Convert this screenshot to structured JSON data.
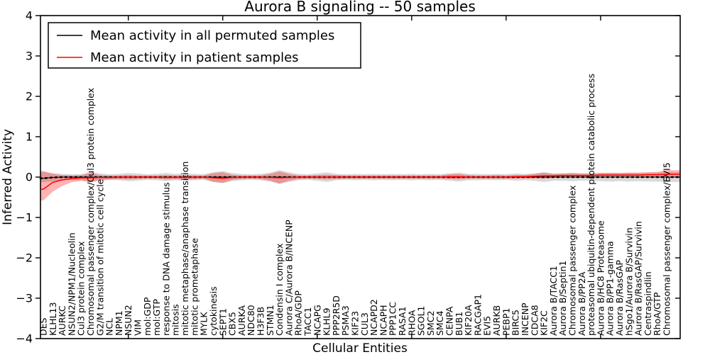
{
  "figure": {
    "title": "Aurora B signaling -- 50 samples",
    "xlabel": "Cellular Entities",
    "ylabel": "Inferred Activity"
  },
  "legend": {
    "items": [
      {
        "label": "Mean activity in all permuted samples",
        "color": "#000000"
      },
      {
        "label": "Mean activity in patient samples",
        "color": "#ff0000"
      }
    ]
  },
  "chart_data": {
    "type": "line",
    "title": "Aurora B signaling -- 50 samples",
    "xlabel": "Cellular Entities",
    "ylabel": "Inferred Activity",
    "ylim": [
      -4,
      4
    ],
    "yticks": [
      4,
      3,
      2,
      1,
      0,
      -1,
      -2,
      -3,
      -4
    ],
    "grid": false,
    "legend_position": "upper left",
    "x_major_tick_indices": [
      9,
      19,
      29,
      39,
      49,
      59
    ],
    "categories": [
      "DES",
      "KLHL13",
      "AURKC",
      "NSUN2/NPM1/Nucleolin",
      "Cul3 protein complex",
      "Chromosomal passenger complex/Cul3 protein complex",
      "G2/M transition of mitotic cell cycle",
      "NCL",
      "NPM1",
      "NSUN2",
      "VIM",
      "mol:GDP",
      "mol:GTP",
      "response to DNA damage stimulus",
      "mitosis",
      "mitotic metaphase/anaphase transition",
      "mitotic prometaphase",
      "MYLK",
      "cytokinesis",
      "SEPT1",
      "CBX5",
      "AURKA",
      "NDC80",
      "H3F3B",
      "STMN1",
      "Condensin I complex",
      "Aurora C/Aurora B/INCENP",
      "RhoA/GDP",
      "TACC1",
      "NCAPG",
      "KLHL9",
      "PPP2R5D",
      "PSMA3",
      "KIF23",
      "CUL3",
      "NCAPD2",
      "NCAPH",
      "PPP1CC",
      "RASA1",
      "RHOA",
      "SGOL1",
      "SMC2",
      "SMC4",
      "CENPA",
      "BUB1",
      "KIF20A",
      "RACGAP1",
      "EVI5",
      "AURKB",
      "PEBP1",
      "BIRC5",
      "INCENP",
      "CDCA8",
      "KIF2C",
      "Aurora B/TACC1",
      "Aurora B/Septin1",
      "Chromosomal passenger complex",
      "Aurora B/PP2A",
      "proteasomal ubiquitin-dependent protein catabolic process",
      "Aurora B/HC8 Proteasome",
      "Aurora B/PP1-gamma",
      "Aurora B/RasGAP",
      "hSgo1/Aurora B/Survivin",
      "Aurora B/RasGAP/Survivin",
      "Centraspindlin",
      "RhoA/GTP",
      "Chromosomal passenger complex/EVI5"
    ],
    "series": [
      {
        "name": "Mean activity in all permuted samples",
        "color": "#000000",
        "band_color": "#808080",
        "band_alpha": 0.3,
        "dotted_markers": true,
        "values": [
          -0.03,
          -0.01,
          0,
          0,
          0,
          0,
          0,
          0,
          0,
          0,
          0,
          0,
          0,
          0,
          0,
          0,
          0,
          0,
          0,
          0,
          0,
          0,
          0,
          0,
          0,
          0,
          0,
          0,
          0,
          0,
          0,
          0,
          0,
          0,
          0,
          0,
          0,
          0,
          0,
          0,
          0,
          0,
          0,
          0,
          0,
          0,
          0,
          0,
          0,
          0,
          0,
          0,
          0,
          0,
          0,
          0,
          0,
          0,
          0,
          0,
          0,
          0,
          0,
          0,
          0,
          0,
          0
        ],
        "band_upper": [
          0.13,
          0.1,
          0.08,
          0.07,
          0.07,
          0.13,
          0.09,
          0.07,
          0.08,
          0.1,
          0.09,
          0.07,
          0.08,
          0.1,
          0.08,
          0.09,
          0.08,
          0.07,
          0.12,
          0.15,
          0.1,
          0.08,
          0.07,
          0.08,
          0.11,
          0.17,
          0.12,
          0.08,
          0.07,
          0.09,
          0.12,
          0.08,
          0.07,
          0.08,
          0.07,
          0.08,
          0.07,
          0.08,
          0.07,
          0.08,
          0.07,
          0.08,
          0.07,
          0.09,
          0.11,
          0.08,
          0.08,
          0.07,
          0.08,
          0.07,
          0.09,
          0.08,
          0.09,
          0.12,
          0.09,
          0.09,
          0.1,
          0.09,
          0.09,
          0.1,
          0.11,
          0.1,
          0.11,
          0.1,
          0.11,
          0.11,
          0.12
        ],
        "band_lower": [
          -0.13,
          -0.1,
          -0.08,
          -0.07,
          -0.07,
          -0.13,
          -0.09,
          -0.07,
          -0.08,
          -0.1,
          -0.09,
          -0.07,
          -0.08,
          -0.1,
          -0.08,
          -0.09,
          -0.08,
          -0.07,
          -0.12,
          -0.15,
          -0.1,
          -0.08,
          -0.07,
          -0.08,
          -0.11,
          -0.17,
          -0.12,
          -0.08,
          -0.07,
          -0.09,
          -0.12,
          -0.08,
          -0.07,
          -0.08,
          -0.07,
          -0.08,
          -0.07,
          -0.08,
          -0.07,
          -0.08,
          -0.07,
          -0.08,
          -0.07,
          -0.09,
          -0.11,
          -0.08,
          -0.08,
          -0.07,
          -0.08,
          -0.07,
          -0.09,
          -0.08,
          -0.09,
          -0.12,
          -0.09,
          -0.09,
          -0.1,
          -0.09,
          -0.09,
          -0.1,
          -0.11,
          -0.1,
          -0.11,
          -0.1,
          -0.11,
          -0.11,
          -0.12
        ]
      },
      {
        "name": "Mean activity in patient samples",
        "color": "#ff0000",
        "band_color": "#ff0000",
        "band_alpha": 0.3,
        "dotted_markers": false,
        "values": [
          -0.3,
          -0.13,
          -0.07,
          -0.04,
          -0.02,
          -0.02,
          -0.01,
          -0.01,
          0,
          0,
          0,
          0,
          0,
          -0.01,
          0,
          -0.01,
          0,
          0,
          -0.02,
          -0.03,
          -0.01,
          0,
          0,
          0,
          -0.01,
          -0.02,
          -0.01,
          0,
          0,
          0,
          0,
          0,
          0,
          0,
          0,
          0,
          0,
          0,
          0,
          0,
          0,
          0,
          0,
          0.01,
          0.01,
          0,
          0,
          0,
          0,
          0,
          0.01,
          0.01,
          0.02,
          0.03,
          0.03,
          0.04,
          0.04,
          0.04,
          0.04,
          0.05,
          0.05,
          0.05,
          0.05,
          0.05,
          0.06,
          0.06,
          0.07
        ],
        "band_upper": [
          0.15,
          0.08,
          0.05,
          0.04,
          0.05,
          0.1,
          0.05,
          0.04,
          0.04,
          0.05,
          0.04,
          0.04,
          0.04,
          0.05,
          0.04,
          0.05,
          0.04,
          0.04,
          0.1,
          0.12,
          0.06,
          0.04,
          0.04,
          0.04,
          0.08,
          0.14,
          0.08,
          0.04,
          0.04,
          0.05,
          0.06,
          0.05,
          0.04,
          0.04,
          0.04,
          0.04,
          0.04,
          0.04,
          0.04,
          0.04,
          0.04,
          0.04,
          0.04,
          0.07,
          0.08,
          0.05,
          0.04,
          0.04,
          0.05,
          0.04,
          0.05,
          0.05,
          0.08,
          0.11,
          0.08,
          0.09,
          0.1,
          0.09,
          0.09,
          0.1,
          0.1,
          0.1,
          0.11,
          0.11,
          0.12,
          0.13,
          0.17
        ],
        "band_lower": [
          -0.58,
          -0.36,
          -0.22,
          -0.13,
          -0.09,
          -0.13,
          -0.07,
          -0.06,
          -0.05,
          -0.06,
          -0.05,
          -0.04,
          -0.04,
          -0.06,
          -0.05,
          -0.06,
          -0.05,
          -0.04,
          -0.12,
          -0.14,
          -0.07,
          -0.05,
          -0.04,
          -0.05,
          -0.09,
          -0.16,
          -0.09,
          -0.05,
          -0.04,
          -0.05,
          -0.06,
          -0.05,
          -0.04,
          -0.04,
          -0.04,
          -0.04,
          -0.04,
          -0.04,
          -0.04,
          -0.04,
          -0.04,
          -0.04,
          -0.04,
          -0.05,
          -0.06,
          -0.04,
          -0.04,
          -0.04,
          -0.04,
          -0.04,
          -0.04,
          -0.03,
          -0.03,
          -0.04,
          -0.02,
          -0.01,
          -0.01,
          -0.01,
          0,
          0,
          0,
          0,
          0,
          0.01,
          0.01,
          0.01,
          0.02
        ]
      }
    ]
  }
}
